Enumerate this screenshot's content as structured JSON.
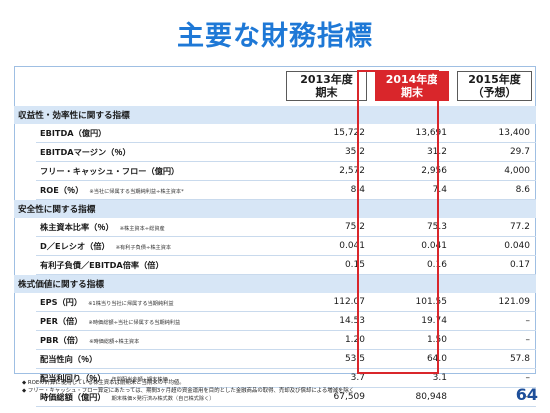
{
  "title": "主要な財務指標",
  "columns": [
    {
      "line1": "2013年度",
      "line2": "期末"
    },
    {
      "line1": "2014年度",
      "line2": "期末"
    },
    {
      "line1": "2015年度",
      "line2": "（予想）"
    }
  ],
  "sections": [
    {
      "label": "収益性・効率性に関する指標",
      "rows": [
        {
          "label": "EBITDA（億円）",
          "note": "",
          "values": [
            "15,722",
            "13,691",
            "13,400"
          ]
        },
        {
          "label": "EBITDAマージン（％）",
          "note": "",
          "values": [
            "35.2",
            "31.2",
            "29.7"
          ]
        },
        {
          "label": "フリー・キャッシュ・フロー（億円）",
          "note": "",
          "values": [
            "2,572",
            "2,956",
            "4,000"
          ]
        },
        {
          "label": "ROE（％）",
          "note": "※当社に帰属する当期純利益÷株主資本*",
          "values": [
            "8.4",
            "7.4",
            "8.6"
          ]
        }
      ]
    },
    {
      "label": "安全性に関する指標",
      "rows": [
        {
          "label": "株主資本比率（％）",
          "note": "※株主資本÷総資産",
          "values": [
            "75.2",
            "75.3",
            "77.2"
          ]
        },
        {
          "label": "D／Eレシオ（倍）",
          "note": "※有利子負債÷株主資本",
          "values": [
            "0.041",
            "0.041",
            "0.040"
          ]
        },
        {
          "label": "有利子負債／EBITDA倍率（倍）",
          "note": "",
          "values": [
            "0.15",
            "0.16",
            "0.17"
          ]
        }
      ]
    },
    {
      "label": "株式価値に関する指標",
      "rows": [
        {
          "label": "EPS（円）",
          "note": "※1株当り当社に帰属する当期純利益",
          "values": [
            "112.07",
            "101.55",
            "121.09"
          ]
        },
        {
          "label": "PER（倍）",
          "note": "※時価総額÷当社に帰属する当期純利益",
          "values": [
            "14.53",
            "19.74",
            "–"
          ]
        },
        {
          "label": "PBR（倍）",
          "note": "※時価総額÷株主資本",
          "values": [
            "1.20",
            "1.50",
            "–"
          ]
        },
        {
          "label": "配当性向（％）",
          "note": "",
          "values": [
            "53.5",
            "64.0",
            "57.8"
          ]
        },
        {
          "label": "配当利回り（％）",
          "note": "年間配当金額÷期末株価",
          "values": [
            "3.7",
            "3.1",
            "–"
          ]
        },
        {
          "label": "時価総額（億円）",
          "note": "期末株価×発行済み株式数（自己株式除く）",
          "values": [
            "67,509",
            "80,948",
            "–"
          ]
        }
      ]
    }
  ],
  "footnotes": [
    "◆ ROEの計算に使用している株主資本は前期末と当期末の平均値。",
    "◆ フリー・キャッシュ・フロー算定にあたっては、期間3ヶ月超の資金運用を目的とした金融商品の取得、売却及び償却による増減を除く"
  ],
  "page_number": "64",
  "colors": {
    "title": "#1e78d6",
    "highlight": "#d9262b",
    "section_bg": "#d7e6f6"
  }
}
